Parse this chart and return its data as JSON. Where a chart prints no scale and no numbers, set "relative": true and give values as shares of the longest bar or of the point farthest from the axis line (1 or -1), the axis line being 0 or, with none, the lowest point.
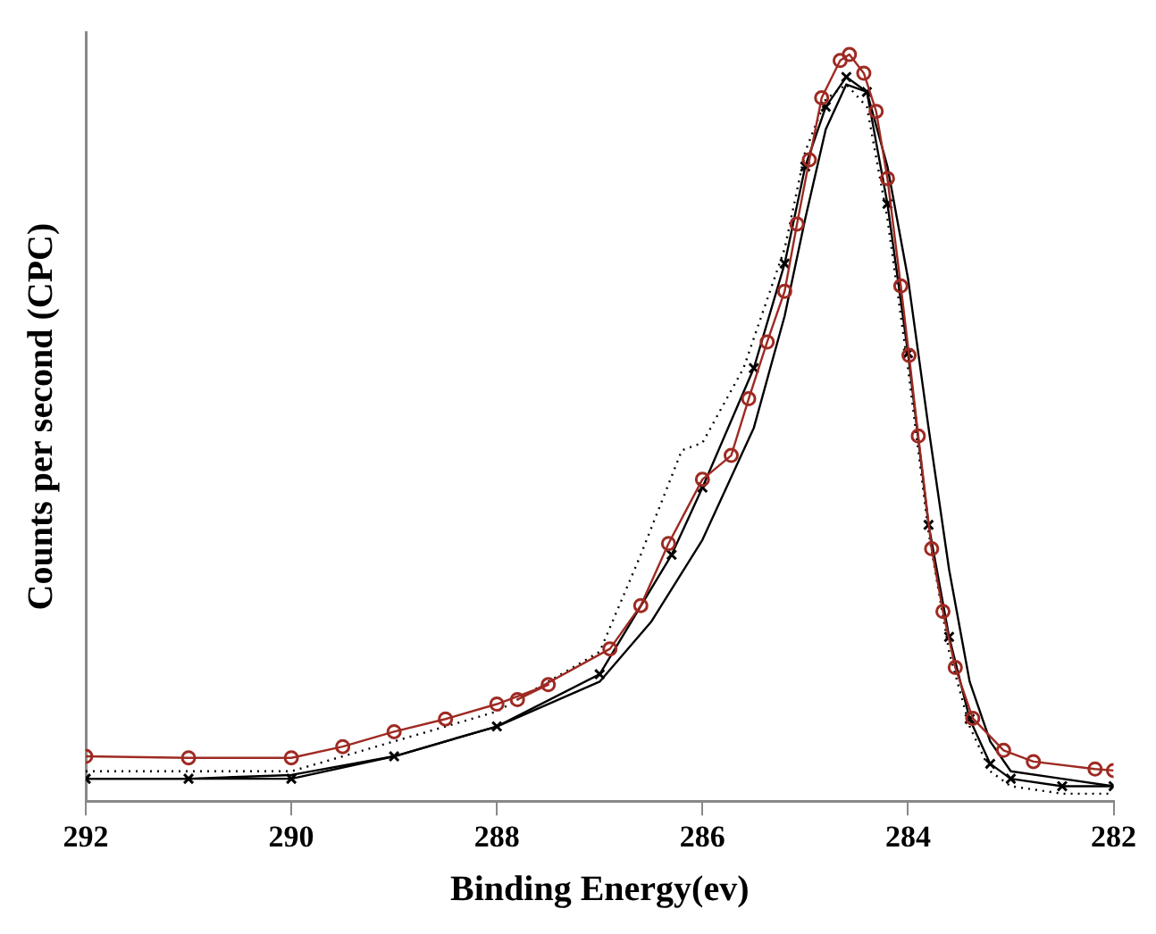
{
  "chart_data": {
    "type": "line",
    "xlabel": "Binding Energy(ev)",
    "ylabel": "Counts per second (CPC)",
    "relative": true,
    "xlim": [
      292,
      282
    ],
    "xticks": [
      292,
      290,
      288,
      286,
      284,
      282
    ],
    "grid": false,
    "legend": false,
    "series": [
      {
        "color": "#9e2a22",
        "marker": "circle",
        "line_style": "solid",
        "x": [
          292,
          291,
          290,
          289.5,
          289,
          288.5,
          288,
          287.5,
          287.8,
          286.9,
          286.6,
          286.33,
          286.0,
          285.72,
          285.55,
          285.37,
          285.2,
          285.08,
          284.96,
          284.84,
          284.66,
          284.57,
          284.43,
          284.31,
          284.2,
          284.07,
          283.99,
          283.9,
          283.77,
          283.66,
          283.54,
          283.37,
          283.07,
          282.78,
          282.18,
          282
        ],
        "values": [
          0.06,
          0.058,
          0.058,
          0.073,
          0.093,
          0.11,
          0.13,
          0.156,
          0.136,
          0.204,
          0.262,
          0.345,
          0.431,
          0.463,
          0.539,
          0.615,
          0.683,
          0.773,
          0.859,
          0.942,
          0.992,
          1.0,
          0.975,
          0.924,
          0.834,
          0.69,
          0.597,
          0.489,
          0.338,
          0.254,
          0.179,
          0.111,
          0.068,
          0.053,
          0.043,
          0.041
        ]
      },
      {
        "color": "#000000",
        "marker": "cross",
        "line_style": "solid",
        "x": [
          292,
          291,
          290,
          289,
          288,
          287,
          286.3,
          286.0,
          285.5,
          285.2,
          285.0,
          284.8,
          284.6,
          284.4,
          284.2,
          284.0,
          283.8,
          283.6,
          283.4,
          283.2,
          283.0,
          282.5,
          282
        ],
        "values": [
          0.03,
          0.03,
          0.03,
          0.06,
          0.1,
          0.17,
          0.33,
          0.42,
          0.58,
          0.72,
          0.85,
          0.93,
          0.97,
          0.95,
          0.8,
          0.6,
          0.37,
          0.22,
          0.11,
          0.05,
          0.03,
          0.02,
          0.02
        ]
      },
      {
        "color": "#000000",
        "marker": "none",
        "line_style": "solid",
        "x": [
          292,
          291,
          290,
          289,
          288,
          287,
          286.5,
          286.0,
          285.5,
          285.2,
          285.0,
          284.8,
          284.6,
          284.4,
          284.2,
          284.0,
          283.8,
          283.6,
          283.4,
          283.2,
          283.0,
          282.5,
          282
        ],
        "values": [
          0.03,
          0.03,
          0.035,
          0.06,
          0.1,
          0.16,
          0.24,
          0.35,
          0.5,
          0.65,
          0.78,
          0.9,
          0.96,
          0.95,
          0.85,
          0.7,
          0.5,
          0.31,
          0.16,
          0.08,
          0.04,
          0.03,
          0.02
        ]
      },
      {
        "color": "#000000",
        "marker": "none",
        "line_style": "dotted",
        "x": [
          292,
          291,
          290,
          289,
          288,
          287,
          286.6,
          286.2,
          286.0,
          285.6,
          285.2,
          285.0,
          284.8,
          284.6,
          284.4,
          284.2,
          284.0,
          283.8,
          283.6,
          283.4,
          283.2,
          283.0,
          282.5,
          282
        ],
        "values": [
          0.04,
          0.04,
          0.04,
          0.08,
          0.12,
          0.2,
          0.33,
          0.47,
          0.48,
          0.58,
          0.74,
          0.87,
          0.94,
          0.96,
          0.93,
          0.78,
          0.58,
          0.36,
          0.2,
          0.1,
          0.04,
          0.02,
          0.01,
          0.01
        ]
      }
    ]
  }
}
